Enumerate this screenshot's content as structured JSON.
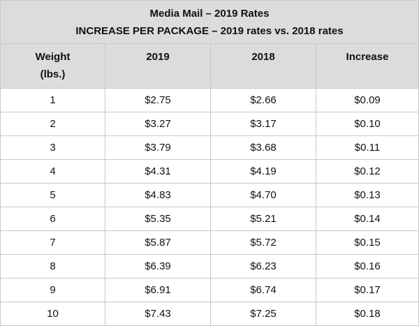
{
  "table": {
    "title": "Media Mail – 2019 Rates",
    "subtitle": "INCREASE PER PACKAGE – 2019 rates vs. 2018 rates",
    "headers": {
      "weight_line1": "Weight",
      "weight_line2": "(lbs.)",
      "y2019": "2019",
      "y2018": "2018",
      "increase": "Increase"
    },
    "rows": [
      {
        "weight": "1",
        "rate_2019": "$2.75",
        "rate_2018": "$2.66",
        "increase": "$0.09"
      },
      {
        "weight": "2",
        "rate_2019": "$3.27",
        "rate_2018": "$3.17",
        "increase": "$0.10"
      },
      {
        "weight": "3",
        "rate_2019": "$3.79",
        "rate_2018": "$3.68",
        "increase": "$0.11"
      },
      {
        "weight": "4",
        "rate_2019": "$4.31",
        "rate_2018": "$4.19",
        "increase": "$0.12"
      },
      {
        "weight": "5",
        "rate_2019": "$4.83",
        "rate_2018": "$4.70",
        "increase": "$0.13"
      },
      {
        "weight": "6",
        "rate_2019": "$5.35",
        "rate_2018": "$5.21",
        "increase": "$0.14"
      },
      {
        "weight": "7",
        "rate_2019": "$5.87",
        "rate_2018": "$5.72",
        "increase": "$0.15"
      },
      {
        "weight": "8",
        "rate_2019": "$6.39",
        "rate_2018": "$6.23",
        "increase": "$0.16"
      },
      {
        "weight": "9",
        "rate_2019": "$6.91",
        "rate_2018": "$6.74",
        "increase": "$0.17"
      },
      {
        "weight": "10",
        "rate_2019": "$7.43",
        "rate_2018": "$7.25",
        "increase": "$0.18"
      }
    ]
  },
  "colors": {
    "header_background": "#dcdcdc",
    "border": "#c8c8c8",
    "text": "#111111"
  }
}
